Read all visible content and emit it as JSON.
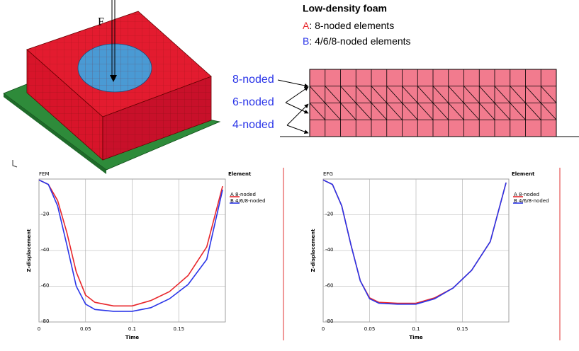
{
  "figure": {
    "force_label": "F",
    "legend_title": "Low-density foam",
    "legend_a_letter": "A",
    "legend_a_text": ": 8-noded elements",
    "legend_b_letter": "B",
    "legend_b_text": ": 4/6/8-noded elements",
    "mesh_labels": [
      "8-noded",
      "6-noded",
      "4-noded"
    ]
  },
  "chart_data": [
    {
      "type": "line",
      "title": "FEM",
      "legend_title": "Element",
      "x_label": "Time",
      "y_label": "Z-displacement",
      "xlim": [
        0,
        0.2
      ],
      "ylim": [
        -80,
        0
      ],
      "xticks": [
        0,
        0.05,
        0.1,
        0.15
      ],
      "yticks": [
        -80,
        -60,
        -40,
        -20
      ],
      "grid": true,
      "x": [
        0,
        0.01,
        0.02,
        0.03,
        0.04,
        0.05,
        0.06,
        0.08,
        0.1,
        0.12,
        0.14,
        0.16,
        0.18,
        0.197
      ],
      "series": [
        {
          "name": "8-noded",
          "symbol": "A",
          "color": "#e8262b",
          "values": [
            -0.5,
            -3,
            -12,
            -30,
            -52,
            -65,
            -69,
            -71,
            -71,
            -68,
            -63,
            -54,
            -38,
            -4
          ]
        },
        {
          "name": "4/6/8-noded",
          "symbol": "B",
          "color": "#2a35e8",
          "values": [
            -0.5,
            -3,
            -15,
            -37,
            -60,
            -70,
            -73,
            -74,
            -74,
            -72,
            -67,
            -59,
            -45,
            -6
          ]
        }
      ]
    },
    {
      "type": "line",
      "title": "EFG",
      "legend_title": "Element",
      "x_label": "Time",
      "y_label": "Z-displacement",
      "xlim": [
        0,
        0.2
      ],
      "ylim": [
        -80,
        0
      ],
      "xticks": [
        0,
        0.05,
        0.1,
        0.15
      ],
      "yticks": [
        -80,
        -60,
        -40,
        -20
      ],
      "grid": true,
      "x": [
        0,
        0.01,
        0.02,
        0.03,
        0.04,
        0.05,
        0.06,
        0.08,
        0.1,
        0.12,
        0.14,
        0.16,
        0.18,
        0.197
      ],
      "series": [
        {
          "name": "8-noded",
          "symbol": "A",
          "color": "#e8262b",
          "values": [
            -0.5,
            -3,
            -15,
            -37,
            -57,
            -66.5,
            -69,
            -69.5,
            -69.5,
            -66.5,
            -61,
            -51,
            -35,
            -2
          ]
        },
        {
          "name": "4/6/8-noded",
          "symbol": "B",
          "color": "#2a35e8",
          "values": [
            -0.5,
            -3,
            -15,
            -37,
            -57,
            -67,
            -69.5,
            -70,
            -70,
            -67,
            -61,
            -51,
            -35,
            -2
          ]
        }
      ]
    }
  ]
}
